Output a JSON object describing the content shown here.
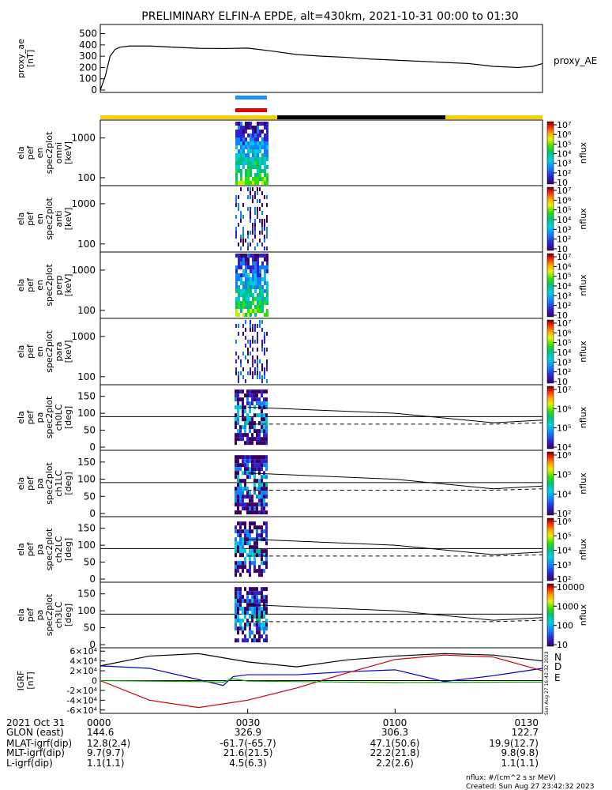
{
  "figure_title": "PRELIMINARY ELFIN-A EPDE, alt=430km, 2021-10-31 00:00 to 01:30",
  "colors": {
    "sci_bar_blue": "#1e90ff",
    "sci_bar_red": "#e00000",
    "status_yellow": "#f5d000",
    "status_black": "#000000",
    "igrf_n": "#0000cc",
    "igrf_d": "#cc0000",
    "igrf_e": "#00aa00"
  },
  "chart_data": [
    {
      "type": "line",
      "ylabel": "proxy_ae [nT]",
      "yticks": [
        0,
        100,
        200,
        300,
        400,
        500
      ],
      "ylim": [
        0,
        560
      ],
      "series": [
        {
          "name": "proxy_AE",
          "x": [
            0,
            1,
            2,
            3,
            4,
            6,
            10,
            15,
            20,
            25,
            30,
            35,
            40,
            45,
            50,
            55,
            60,
            65,
            70,
            75,
            80,
            85,
            88,
            90
          ],
          "values": [
            0,
            120,
            300,
            360,
            380,
            390,
            390,
            380,
            370,
            368,
            372,
            345,
            315,
            300,
            290,
            275,
            265,
            255,
            245,
            235,
            210,
            200,
            210,
            235
          ]
        }
      ]
    },
    {
      "type": "heatmap",
      "ylabel": "ela pef en spec2plot omni [keV]",
      "yscale": "log",
      "yticks": [
        100,
        1000
      ],
      "colorbar": {
        "label": "nflux",
        "ticks": [
          "10",
          "10²",
          "10³",
          "10⁴",
          "10⁵",
          "10⁶",
          "10⁷"
        ]
      }
    },
    {
      "type": "heatmap",
      "ylabel": "ela pef en spec2plot anti [keV]",
      "yscale": "log",
      "yticks": [
        100,
        1000
      ],
      "colorbar": {
        "label": "nflux",
        "ticks": [
          "10",
          "10²",
          "10³",
          "10⁴",
          "10⁵",
          "10⁶",
          "10⁷"
        ]
      }
    },
    {
      "type": "heatmap",
      "ylabel": "ela pef en spec2plot perp [keV]",
      "yscale": "log",
      "yticks": [
        100,
        1000
      ],
      "colorbar": {
        "label": "nflux",
        "ticks": [
          "10",
          "10²",
          "10³",
          "10⁴",
          "10⁵",
          "10⁶",
          "10⁷"
        ]
      }
    },
    {
      "type": "heatmap",
      "ylabel": "ela pef en spec2plot para [keV]",
      "yscale": "log",
      "yticks": [
        100,
        1000
      ],
      "colorbar": {
        "label": "nflux",
        "ticks": [
          "10",
          "10²",
          "10³",
          "10⁴",
          "10⁵",
          "10⁶",
          "10⁷"
        ]
      }
    },
    {
      "type": "heatmap",
      "ylabel": "ela pef pa spec2plot ch0LC [deg]",
      "yticks": [
        0,
        50,
        100,
        150
      ],
      "colorbar": {
        "label": "nflux",
        "ticks": [
          "10⁴",
          "10⁵",
          "10⁶",
          "10⁷"
        ]
      },
      "loss_cone_solid": {
        "x": [
          30,
          60,
          80,
          90
        ],
        "y": [
          118,
          100,
          72,
          80
        ]
      },
      "loss_cone_dashed": {
        "x": [
          30,
          60,
          80,
          90
        ],
        "y": [
          68,
          68,
          68,
          72
        ]
      }
    },
    {
      "type": "heatmap",
      "ylabel": "ela pef pa spec2plot ch1LC [deg]",
      "yticks": [
        0,
        50,
        100,
        150
      ],
      "colorbar": {
        "label": "nflux",
        "ticks": [
          "10²",
          "10⁴",
          "10⁵",
          "10⁶"
        ]
      },
      "loss_cone_solid": {
        "x": [
          30,
          60,
          80,
          90
        ],
        "y": [
          118,
          100,
          72,
          80
        ]
      },
      "loss_cone_dashed": {
        "x": [
          30,
          60,
          80,
          90
        ],
        "y": [
          68,
          68,
          68,
          72
        ]
      }
    },
    {
      "type": "heatmap",
      "ylabel": "ela pef pa spec2plot ch2LC [deg]",
      "yticks": [
        0,
        50,
        100,
        150
      ],
      "colorbar": {
        "label": "nflux",
        "ticks": [
          "10²",
          "10³",
          "10⁴",
          "10⁵",
          "10⁶"
        ]
      },
      "loss_cone_solid": {
        "x": [
          30,
          60,
          80,
          90
        ],
        "y": [
          118,
          100,
          72,
          80
        ]
      },
      "loss_cone_dashed": {
        "x": [
          30,
          60,
          80,
          90
        ],
        "y": [
          68,
          68,
          68,
          72
        ]
      }
    },
    {
      "type": "heatmap",
      "ylabel": "ela pef pa spec2plot ch3LC [deg]",
      "yticks": [
        0,
        50,
        100,
        150
      ],
      "colorbar": {
        "label": "nflux",
        "ticks": [
          "10",
          "100",
          "1000",
          "10000"
        ]
      },
      "loss_cone_solid": {
        "x": [
          30,
          60,
          80,
          90
        ],
        "y": [
          118,
          100,
          72,
          80
        ]
      },
      "loss_cone_dashed": {
        "x": [
          30,
          60,
          80,
          90
        ],
        "y": [
          68,
          68,
          68,
          72
        ]
      }
    },
    {
      "type": "line",
      "ylabel": "IGRF [nT]",
      "yticks": [
        "-6×10⁴",
        "-4×10⁴",
        "-2×10⁴",
        "0",
        "2×10⁴",
        "4×10⁴",
        "6×10⁴"
      ],
      "ylim": [
        -62000,
        62000
      ],
      "series": [
        {
          "name": "N",
          "x": [
            0,
            10,
            20,
            25,
            27,
            30,
            40,
            50,
            60,
            70,
            80,
            90
          ],
          "values": [
            30000,
            25000,
            2000,
            -10000,
            8000,
            12000,
            12000,
            18000,
            22000,
            -2000,
            10000,
            25000
          ]
        },
        {
          "name": "D",
          "x": [
            0,
            10,
            20,
            30,
            40,
            50,
            60,
            70,
            80,
            90
          ],
          "values": [
            0,
            -40000,
            -55000,
            -40000,
            -15000,
            15000,
            43000,
            52000,
            48000,
            20000
          ]
        },
        {
          "name": "E",
          "x": [
            0,
            20,
            25,
            27,
            30,
            60,
            90
          ],
          "values": [
            0,
            -2000,
            -3000,
            4000,
            -1000,
            -4000,
            -3000
          ]
        },
        {
          "name": "total",
          "x": [
            0,
            10,
            20,
            30,
            40,
            50,
            60,
            70,
            80,
            90
          ],
          "values": [
            30000,
            50000,
            55000,
            38000,
            28000,
            42000,
            50000,
            55000,
            52000,
            40000
          ]
        }
      ]
    }
  ],
  "trace_label": "proxy_AE",
  "igrf_legend": [
    "N",
    "D",
    "E"
  ],
  "side_stamp": "Sun Aug 27 16:42:32 2023",
  "footer_table": {
    "rows": [
      [
        "2021 Oct 31",
        "0000",
        "0030",
        "0100",
        "0130"
      ],
      [
        "GLON (east)",
        "144.6",
        "326.9",
        "306.3",
        "122.7"
      ],
      [
        "MLAT-igrf(dip)",
        "12.8(2.4)",
        "-61.7(-65.7)",
        "47.1(50.6)",
        "19.9(12.7)"
      ],
      [
        "MLT-igrf(dip)",
        "9.7(9.7)",
        "21.6(21.5)",
        "22.2(21.8)",
        "9.8(9.8)"
      ],
      [
        "L-igrf(dip)",
        "1.1(1.1)",
        "4.5(6.3)",
        "2.2(2.6)",
        "1.1(1.1)"
      ]
    ]
  },
  "footnote": {
    "units": "nflux: #/(cm^2 s sr MeV)",
    "created": "Created: Sun Aug 27 23:42:32 2023"
  }
}
